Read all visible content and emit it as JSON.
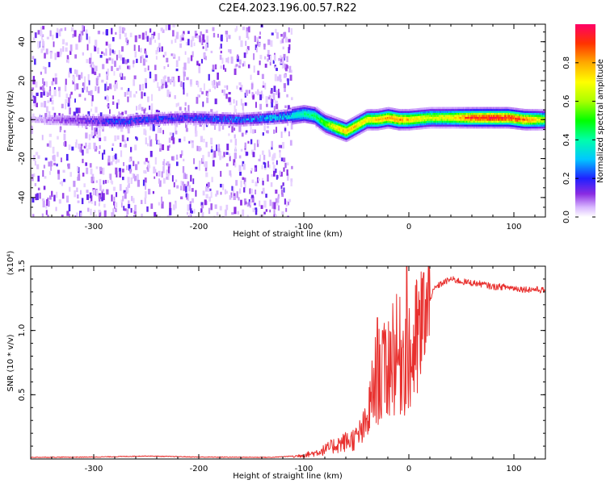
{
  "page": {
    "title": "C2E4.2023.196.00.57.R22"
  },
  "colors": {
    "snr_line": "#e8302e",
    "axis": "#000000"
  },
  "chart_data": [
    {
      "type": "heatmap",
      "title": "C2E4.2023.196.00.57.R22",
      "xlabel": "Height of straight line (km)",
      "ylabel": "Frequency (Hz)",
      "xlim": [
        -360,
        130
      ],
      "ylim": [
        -50,
        49
      ],
      "xticks": [
        {
          "value": -300,
          "label": "-300"
        },
        {
          "value": -200,
          "label": "-200"
        },
        {
          "value": -100,
          "label": "-100"
        },
        {
          "value": 0,
          "label": "0"
        },
        {
          "value": 100,
          "label": "100"
        }
      ],
      "yticks": [
        {
          "value": -40,
          "label": "-40"
        },
        {
          "value": -20,
          "label": "-20"
        },
        {
          "value": 0,
          "label": "0"
        },
        {
          "value": 20,
          "label": "20"
        },
        {
          "value": 40,
          "label": "40"
        }
      ],
      "colorbar": {
        "label": "Normalized spectral amplitude",
        "range": [
          0,
          1
        ],
        "ticks": [
          {
            "value": 0.0,
            "label": "0.0"
          },
          {
            "value": 0.2,
            "label": "0.2"
          },
          {
            "value": 0.4,
            "label": "0.4"
          },
          {
            "value": 0.6,
            "label": "0.6"
          },
          {
            "value": 0.8,
            "label": "0.8"
          }
        ]
      },
      "noise_region_x": [
        -360,
        -112
      ],
      "ridge": [
        {
          "x": -360,
          "y": 0,
          "amp": 0.05
        },
        {
          "x": -270,
          "y": -1,
          "amp": 0.22
        },
        {
          "x": -255,
          "y": 0,
          "amp": 0.2
        },
        {
          "x": -210,
          "y": 1,
          "amp": 0.2
        },
        {
          "x": -160,
          "y": 0,
          "amp": 0.25
        },
        {
          "x": -130,
          "y": 1,
          "amp": 0.3
        },
        {
          "x": -112,
          "y": 2,
          "amp": 0.35
        },
        {
          "x": -100,
          "y": 3,
          "amp": 0.4
        },
        {
          "x": -90,
          "y": 2,
          "amp": 0.45
        },
        {
          "x": -80,
          "y": -2,
          "amp": 0.55
        },
        {
          "x": -70,
          "y": -4,
          "amp": 0.7
        },
        {
          "x": -60,
          "y": -6,
          "amp": 0.8
        },
        {
          "x": -50,
          "y": -3,
          "amp": 0.75
        },
        {
          "x": -40,
          "y": 0,
          "amp": 0.7
        },
        {
          "x": -30,
          "y": 0,
          "amp": 0.75
        },
        {
          "x": -20,
          "y": 1,
          "amp": 0.8
        },
        {
          "x": -10,
          "y": 0,
          "amp": 0.82
        },
        {
          "x": 0,
          "y": 0,
          "amp": 0.75
        },
        {
          "x": 20,
          "y": 1,
          "amp": 0.65
        },
        {
          "x": 40,
          "y": 1,
          "amp": 0.7
        },
        {
          "x": 60,
          "y": 1,
          "amp": 0.9
        },
        {
          "x": 80,
          "y": 1,
          "amp": 0.95
        },
        {
          "x": 95,
          "y": 1,
          "amp": 0.92
        },
        {
          "x": 110,
          "y": 0,
          "amp": 0.85
        },
        {
          "x": 130,
          "y": 0,
          "amp": 0.6
        }
      ]
    },
    {
      "type": "line",
      "xlabel": "Height of straight line (km)",
      "ylabel": "SNR (10 * v/v)",
      "yscale_label": "(x10⁴)",
      "xlim": [
        -360,
        130
      ],
      "ylim": [
        0,
        1.5
      ],
      "xticks": [
        {
          "value": -300,
          "label": "-300"
        },
        {
          "value": -200,
          "label": "-200"
        },
        {
          "value": -100,
          "label": "-100"
        },
        {
          "value": 0,
          "label": "0"
        },
        {
          "value": 100,
          "label": "100"
        }
      ],
      "yticks": [
        {
          "value": 0.5,
          "label": "0.5"
        },
        {
          "value": 1.0,
          "label": "1.0"
        },
        {
          "value": 1.5,
          "label": "1.5"
        }
      ],
      "series": [
        {
          "envelope": [
            {
              "x": -360,
              "y": 0.01
            },
            {
              "x": -300,
              "y": 0.012
            },
            {
              "x": -250,
              "y": 0.02
            },
            {
              "x": -200,
              "y": 0.012
            },
            {
              "x": -130,
              "y": 0.01
            },
            {
              "x": -110,
              "y": 0.02
            },
            {
              "x": -90,
              "y": 0.05
            },
            {
              "x": -80,
              "y": 0.08
            },
            {
              "x": -70,
              "y": 0.12
            },
            {
              "x": -60,
              "y": 0.15
            },
            {
              "x": -50,
              "y": 0.18
            },
            {
              "x": -40,
              "y": 0.3
            },
            {
              "x": -35,
              "y": 0.55
            },
            {
              "x": -30,
              "y": 0.75
            },
            {
              "x": -25,
              "y": 0.7
            },
            {
              "x": -20,
              "y": 0.8
            },
            {
              "x": -15,
              "y": 0.95
            },
            {
              "x": -10,
              "y": 0.85
            },
            {
              "x": -5,
              "y": 0.95
            },
            {
              "x": 0,
              "y": 0.8
            },
            {
              "x": 5,
              "y": 0.95
            },
            {
              "x": 10,
              "y": 1.05
            },
            {
              "x": 15,
              "y": 1.15
            },
            {
              "x": 20,
              "y": 1.25
            },
            {
              "x": 25,
              "y": 1.33
            },
            {
              "x": 30,
              "y": 1.36
            },
            {
              "x": 40,
              "y": 1.4
            },
            {
              "x": 50,
              "y": 1.38
            },
            {
              "x": 60,
              "y": 1.37
            },
            {
              "x": 70,
              "y": 1.36
            },
            {
              "x": 80,
              "y": 1.34
            },
            {
              "x": 90,
              "y": 1.34
            },
            {
              "x": 100,
              "y": 1.33
            },
            {
              "x": 110,
              "y": 1.32
            },
            {
              "x": 120,
              "y": 1.32
            },
            {
              "x": 130,
              "y": 1.31
            }
          ],
          "peaks": [
            {
              "x": -2,
              "y": 1.5
            },
            {
              "x": 14,
              "y": 1.45
            },
            {
              "x": -30,
              "y": 1.1
            },
            {
              "x": -25,
              "y": 1.0
            }
          ]
        }
      ]
    }
  ]
}
